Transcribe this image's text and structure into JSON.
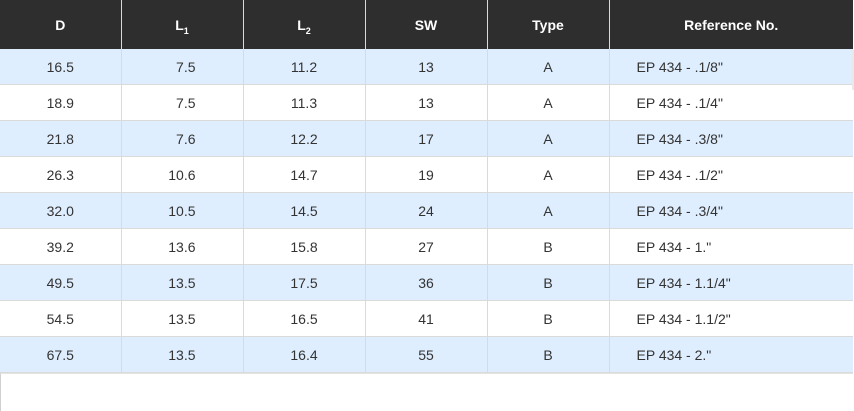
{
  "table": {
    "headers": [
      {
        "main": "D",
        "sub": ""
      },
      {
        "main": "L",
        "sub": "1"
      },
      {
        "main": "L",
        "sub": "2"
      },
      {
        "main": "SW",
        "sub": ""
      },
      {
        "main": "Type",
        "sub": ""
      },
      {
        "main": "Reference No.",
        "sub": ""
      }
    ],
    "rows": [
      [
        "16.5",
        "7.5",
        "11.2",
        "13",
        "A",
        "EP 434 -  .1/8\""
      ],
      [
        "18.9",
        "7.5",
        "11.3",
        "13",
        "A",
        "EP 434 -  .1/4\""
      ],
      [
        "21.8",
        "7.6",
        "12.2",
        "17",
        "A",
        "EP 434 -  .3/8\""
      ],
      [
        "26.3",
        "10.6",
        "14.7",
        "19",
        "A",
        "EP 434 -  .1/2\""
      ],
      [
        "32.0",
        "10.5",
        "14.5",
        "24",
        "A",
        "EP 434 -  .3/4\""
      ],
      [
        "39.2",
        "13.6",
        "15.8",
        "27",
        "B",
        "EP 434 - 1.\""
      ],
      [
        "49.5",
        "13.5",
        "17.5",
        "36",
        "B",
        "EP 434 - 1.1/4\""
      ],
      [
        "54.5",
        "13.5",
        "16.5",
        "41",
        "B",
        "EP 434 - 1.1/2\""
      ],
      [
        "67.5",
        "13.5",
        "16.4",
        "55",
        "B",
        "EP 434 - 2.\""
      ]
    ]
  },
  "colors": {
    "header_bg": "#2e2e2e",
    "header_text": "#ffffff",
    "row_alt_bg": "#dfeefe",
    "row_bg": "#ffffff",
    "text": "#333333"
  }
}
